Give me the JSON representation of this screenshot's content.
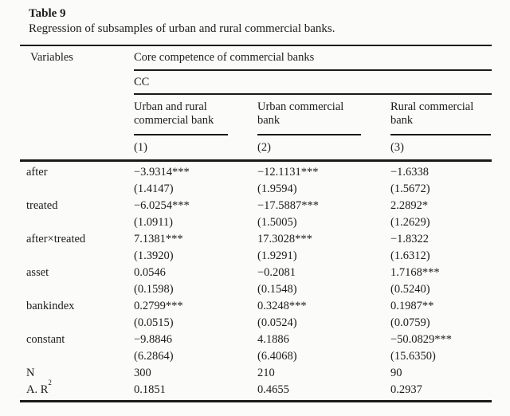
{
  "page": {
    "background": "#fbfbf9",
    "text_color": "#1c1c1a",
    "rule_color": "#1a1a18"
  },
  "table": {
    "title": "Table 9",
    "caption": "Regression of subsamples of urban and rural commercial banks.",
    "header": {
      "variables_label": "Variables",
      "span_label": "Core competence of commercial banks",
      "cc_label": "CC",
      "columns": [
        {
          "line1": "Urban and rural",
          "line2": "commercial bank"
        },
        {
          "line1": "Urban commercial",
          "line2": "bank"
        },
        {
          "line1": "Rural commercial",
          "line2": "bank"
        }
      ],
      "model_numbers": [
        "(1)",
        "(2)",
        "(3)"
      ]
    },
    "rows": [
      {
        "label": "after",
        "cells": [
          "−3.9314***",
          "−12.1131***",
          "−1.6338"
        ]
      },
      {
        "label": "",
        "cells": [
          "(1.4147)",
          "(1.9594)",
          "(1.5672)"
        ]
      },
      {
        "label": "treated",
        "cells": [
          "−6.0254***",
          "−17.5887***",
          "2.2892*"
        ]
      },
      {
        "label": "",
        "cells": [
          "(1.0911)",
          "(1.5005)",
          "(1.2629)"
        ]
      },
      {
        "label": "after×treated",
        "cells": [
          "7.1381***",
          "17.3028***",
          "−1.8322"
        ]
      },
      {
        "label": "",
        "cells": [
          "(1.3920)",
          "(1.9291)",
          "(1.6312)"
        ]
      },
      {
        "label": "asset",
        "cells": [
          "0.0546",
          "−0.2081",
          "1.7168***"
        ]
      },
      {
        "label": "",
        "cells": [
          "(0.1598)",
          "(0.1548)",
          "(0.5240)"
        ]
      },
      {
        "label": "bankindex",
        "cells": [
          "0.2799***",
          "0.3248***",
          "0.1987**"
        ]
      },
      {
        "label": "",
        "cells": [
          "(0.0515)",
          "(0.0524)",
          "(0.0759)"
        ]
      },
      {
        "label": "constant",
        "cells": [
          "−9.8846",
          "4.1886",
          "−50.0829***"
        ]
      },
      {
        "label": "",
        "cells": [
          "(6.2864)",
          "(6.4068)",
          "(15.6350)"
        ]
      },
      {
        "label": "N",
        "cells": [
          "300",
          "210",
          "90"
        ]
      },
      {
        "label": "A. R",
        "label_sup": "2",
        "cells": [
          "0.1851",
          "0.4655",
          "0.2937"
        ]
      }
    ]
  }
}
